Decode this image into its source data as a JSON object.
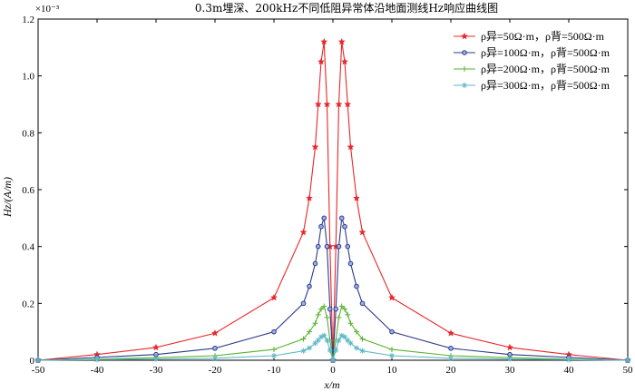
{
  "chart_data": {
    "type": "line",
    "title": "0.3m埋深、200kHz不同低阻异常体沿地面测线Hz响应曲线图",
    "xlabel": "x/m",
    "ylabel": "Hz/(A/m)",
    "y_scale_note": "×10⁻³",
    "xlim": [
      -50,
      50
    ],
    "ylim": [
      0,
      1.2
    ],
    "xticks": [
      -50,
      -40,
      -30,
      -20,
      -10,
      0,
      10,
      20,
      30,
      40,
      50
    ],
    "yticks": [
      0,
      0.2,
      0.4,
      0.6,
      0.8,
      1.0,
      1.2
    ],
    "ytick_labels": [
      "0",
      "0.2",
      "0.4",
      "0.6",
      "0.8",
      "1.0",
      "1.2"
    ],
    "grid": false,
    "legend_position": "top-right",
    "series": [
      {
        "name": "ρ异=50Ω·m，ρ背=500Ω·m",
        "color": "#e8272a",
        "marker": "star",
        "x": [
          -50,
          -40,
          -30,
          -20,
          -10,
          -5,
          -4,
          -3,
          -2.5,
          -2,
          -1.5,
          -1,
          -0.5,
          0,
          0.5,
          1,
          1.5,
          2,
          2.5,
          3,
          4,
          5,
          10,
          20,
          30,
          40,
          50
        ],
        "y": [
          0.0,
          0.02,
          0.045,
          0.095,
          0.22,
          0.45,
          0.57,
          0.75,
          0.9,
          1.05,
          1.12,
          0.9,
          0.4,
          0.0,
          0.4,
          0.9,
          1.12,
          1.05,
          0.9,
          0.75,
          0.57,
          0.45,
          0.22,
          0.095,
          0.045,
          0.02,
          0.0
        ]
      },
      {
        "name": "ρ异=100Ω·m，ρ背=500Ω·m",
        "color": "#2b3a8c",
        "marker": "circle",
        "x": [
          -50,
          -40,
          -30,
          -20,
          -10,
          -5,
          -4,
          -3,
          -2.5,
          -2,
          -1.5,
          -1,
          -0.5,
          0,
          0.5,
          1,
          1.5,
          2,
          2.5,
          3,
          4,
          5,
          10,
          20,
          30,
          40,
          50
        ],
        "y": [
          0.0,
          0.01,
          0.02,
          0.042,
          0.1,
          0.2,
          0.26,
          0.34,
          0.4,
          0.47,
          0.5,
          0.4,
          0.18,
          0.0,
          0.18,
          0.4,
          0.5,
          0.47,
          0.4,
          0.34,
          0.26,
          0.2,
          0.1,
          0.042,
          0.02,
          0.01,
          0.0
        ]
      },
      {
        "name": "ρ异=200Ω·m，ρ背=500Ω·m",
        "color": "#5ab232",
        "marker": "plus",
        "x": [
          -50,
          -40,
          -30,
          -20,
          -10,
          -5,
          -4,
          -3,
          -2.5,
          -2,
          -1.5,
          -1,
          -0.5,
          0,
          0.5,
          1,
          1.5,
          2,
          2.5,
          3,
          4,
          5,
          10,
          20,
          30,
          40,
          50
        ],
        "y": [
          0.0,
          0.004,
          0.009,
          0.016,
          0.038,
          0.075,
          0.1,
          0.13,
          0.16,
          0.18,
          0.19,
          0.15,
          0.07,
          0.0,
          0.07,
          0.15,
          0.19,
          0.18,
          0.16,
          0.13,
          0.1,
          0.075,
          0.038,
          0.016,
          0.009,
          0.004,
          0.0
        ]
      },
      {
        "name": "ρ异=300Ω·m，ρ背=500Ω·m",
        "color": "#5fb8c8",
        "marker": "asterisk",
        "x": [
          -50,
          -40,
          -30,
          -20,
          -10,
          -5,
          -4,
          -3,
          -2.5,
          -2,
          -1.5,
          -1,
          -0.5,
          0,
          0.5,
          1,
          1.5,
          2,
          2.5,
          3,
          4,
          5,
          10,
          20,
          30,
          40,
          50
        ],
        "y": [
          0.0,
          0.002,
          0.004,
          0.007,
          0.016,
          0.033,
          0.043,
          0.06,
          0.07,
          0.082,
          0.087,
          0.07,
          0.035,
          0.0,
          0.035,
          0.07,
          0.087,
          0.082,
          0.07,
          0.06,
          0.043,
          0.033,
          0.016,
          0.007,
          0.004,
          0.002,
          0.0
        ]
      }
    ]
  }
}
